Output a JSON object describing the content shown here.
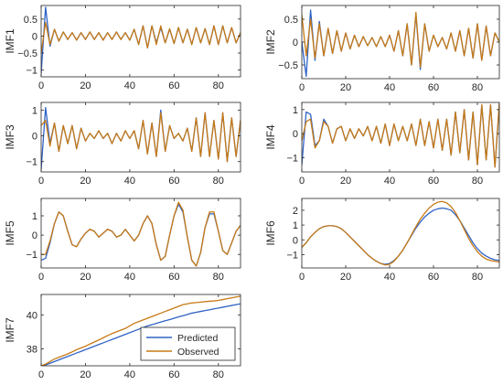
{
  "colors": {
    "predicted": "#2f63c4",
    "observed": "#c77a16",
    "axis": "#262626",
    "background": "#ffffff"
  },
  "legend": {
    "entries": [
      {
        "label": "Predicted",
        "color": "#2f63c4"
      },
      {
        "label": "Observed",
        "color": "#c77a16"
      }
    ],
    "placement": "bottom-right",
    "panel": "IMF7"
  },
  "chart_data": [
    {
      "type": "line",
      "ylabel": "IMF1",
      "xlim": [
        0,
        90
      ],
      "ylim": [
        -1.2,
        0.9
      ],
      "xticks": [
        0,
        20,
        40,
        60,
        80
      ],
      "yticks": [
        -1,
        -0.5,
        0,
        0.5
      ],
      "x": [
        0,
        2,
        4,
        6,
        8,
        10,
        12,
        14,
        16,
        18,
        20,
        22,
        24,
        26,
        28,
        30,
        32,
        34,
        36,
        38,
        40,
        42,
        44,
        46,
        48,
        50,
        52,
        54,
        56,
        58,
        60,
        62,
        64,
        66,
        68,
        70,
        72,
        74,
        76,
        78,
        80,
        82,
        84,
        86,
        88,
        90
      ],
      "series": [
        {
          "name": "Predicted",
          "values": [
            -1.1,
            0.85,
            -0.3,
            0.2,
            -0.15,
            0.12,
            -0.1,
            0.1,
            -0.12,
            0.1,
            -0.1,
            0.12,
            -0.1,
            0.1,
            -0.12,
            0.1,
            -0.1,
            0.12,
            -0.1,
            0.1,
            -0.12,
            0.2,
            -0.25,
            0.3,
            -0.35,
            0.3,
            -0.2,
            0.25,
            -0.2,
            0.2,
            -0.22,
            0.25,
            -0.2,
            0.2,
            -0.25,
            0.25,
            -0.2,
            0.22,
            -0.25,
            0.3,
            -0.25,
            0.3,
            -0.2,
            0.25,
            -0.2,
            0.1
          ]
        },
        {
          "name": "Observed",
          "values": [
            -0.5,
            0.4,
            -0.25,
            0.2,
            -0.15,
            0.12,
            -0.1,
            0.1,
            -0.12,
            0.1,
            -0.1,
            0.12,
            -0.1,
            0.1,
            -0.12,
            0.1,
            -0.1,
            0.12,
            -0.1,
            0.1,
            -0.12,
            0.2,
            -0.25,
            0.3,
            -0.35,
            0.3,
            -0.25,
            0.3,
            -0.2,
            0.22,
            -0.22,
            0.25,
            -0.2,
            0.2,
            -0.25,
            0.25,
            -0.2,
            0.22,
            -0.25,
            0.3,
            -0.25,
            0.3,
            -0.2,
            0.25,
            -0.2,
            0.1
          ]
        }
      ]
    },
    {
      "type": "line",
      "ylabel": "IMF2",
      "xlim": [
        0,
        90
      ],
      "ylim": [
        -0.8,
        0.8
      ],
      "xticks": [
        0,
        20,
        40,
        60,
        80
      ],
      "yticks": [
        -0.5,
        0,
        0.5
      ],
      "x": [
        0,
        2,
        4,
        6,
        8,
        10,
        12,
        14,
        16,
        18,
        20,
        22,
        24,
        26,
        28,
        30,
        32,
        34,
        36,
        38,
        40,
        42,
        44,
        46,
        48,
        50,
        52,
        54,
        56,
        58,
        60,
        62,
        64,
        66,
        68,
        70,
        72,
        74,
        76,
        78,
        80,
        82,
        84,
        86,
        88,
        90
      ],
      "series": [
        {
          "name": "Predicted",
          "values": [
            0.0,
            -0.75,
            0.7,
            -0.4,
            0.45,
            -0.3,
            0.3,
            -0.25,
            0.25,
            -0.2,
            0.2,
            -0.15,
            0.15,
            -0.1,
            0.12,
            -0.08,
            0.1,
            -0.1,
            0.12,
            -0.1,
            0.15,
            -0.2,
            0.25,
            -0.3,
            0.4,
            -0.5,
            0.6,
            -0.6,
            0.4,
            -0.2,
            0.15,
            -0.1,
            0.1,
            -0.15,
            0.2,
            -0.2,
            0.25,
            -0.3,
            0.3,
            -0.35,
            0.4,
            -0.4,
            0.35,
            -0.3,
            0.2,
            0.0
          ]
        },
        {
          "name": "Observed",
          "values": [
            0.6,
            -0.3,
            0.5,
            -0.35,
            0.4,
            -0.3,
            0.3,
            -0.25,
            0.25,
            -0.2,
            0.2,
            -0.15,
            0.15,
            -0.1,
            0.12,
            -0.08,
            0.1,
            -0.1,
            0.12,
            -0.1,
            0.15,
            -0.2,
            0.25,
            -0.3,
            0.4,
            -0.5,
            0.65,
            -0.55,
            0.4,
            -0.2,
            0.15,
            -0.1,
            0.1,
            -0.15,
            0.2,
            -0.2,
            0.25,
            -0.3,
            0.3,
            -0.35,
            0.4,
            -0.4,
            0.35,
            -0.3,
            0.2,
            0.0
          ]
        }
      ]
    },
    {
      "type": "line",
      "ylabel": "IMF3",
      "xlim": [
        0,
        90
      ],
      "ylim": [
        -1.4,
        1.3
      ],
      "xticks": [
        0,
        20,
        40,
        60,
        80
      ],
      "yticks": [
        -1,
        0,
        1
      ],
      "x": [
        0,
        2,
        4,
        6,
        8,
        10,
        12,
        14,
        16,
        18,
        20,
        22,
        24,
        26,
        28,
        30,
        32,
        34,
        36,
        38,
        40,
        42,
        44,
        46,
        48,
        50,
        52,
        54,
        56,
        58,
        60,
        62,
        64,
        66,
        68,
        70,
        72,
        74,
        76,
        78,
        80,
        82,
        84,
        86,
        88,
        90
      ],
      "series": [
        {
          "name": "Predicted",
          "values": [
            -1.3,
            1.1,
            -0.3,
            0.5,
            -0.6,
            0.4,
            -0.3,
            0.4,
            -0.5,
            0.3,
            -0.2,
            0.1,
            -0.1,
            0.2,
            -0.1,
            0.1,
            -0.3,
            0.1,
            -0.2,
            0.2,
            -0.1,
            0.2,
            -0.5,
            0.6,
            -0.7,
            0.5,
            -0.8,
            1.0,
            -0.6,
            0.4,
            -0.1,
            0.1,
            -0.2,
            0.3,
            -0.6,
            0.7,
            -0.8,
            0.9,
            -0.8,
            0.6,
            -0.9,
            0.9,
            -1.0,
            0.7,
            -0.8,
            0.6
          ]
        },
        {
          "name": "Observed",
          "values": [
            0.4,
            0.6,
            -0.4,
            0.5,
            -0.6,
            0.4,
            -0.3,
            0.4,
            -0.5,
            0.3,
            -0.2,
            0.1,
            -0.1,
            0.2,
            -0.1,
            0.1,
            -0.3,
            0.1,
            -0.2,
            0.2,
            -0.1,
            0.2,
            -0.5,
            0.6,
            -0.7,
            0.5,
            -0.8,
            0.9,
            -0.6,
            0.4,
            -0.1,
            0.1,
            -0.2,
            0.3,
            -0.6,
            0.7,
            -0.8,
            0.9,
            -0.8,
            0.6,
            -0.9,
            0.9,
            -1.0,
            0.7,
            -0.8,
            0.6
          ]
        }
      ]
    },
    {
      "type": "line",
      "ylabel": "IMF4",
      "xlim": [
        0,
        90
      ],
      "ylim": [
        -1.6,
        1.3
      ],
      "xticks": [
        0,
        20,
        40,
        60,
        80
      ],
      "yticks": [
        -1,
        0,
        1
      ],
      "x": [
        0,
        2,
        4,
        6,
        8,
        10,
        12,
        14,
        16,
        18,
        20,
        22,
        24,
        26,
        28,
        30,
        32,
        34,
        36,
        38,
        40,
        42,
        44,
        46,
        48,
        50,
        52,
        54,
        56,
        58,
        60,
        62,
        64,
        66,
        68,
        70,
        72,
        74,
        76,
        78,
        80,
        82,
        84,
        86,
        88,
        90
      ],
      "series": [
        {
          "name": "Predicted",
          "values": [
            -1.3,
            0.9,
            0.8,
            -0.5,
            -0.3,
            0.6,
            0.3,
            -0.4,
            0.2,
            0.3,
            -0.3,
            0.2,
            -0.2,
            0.2,
            -0.1,
            0.3,
            -0.3,
            0.3,
            -0.4,
            0.4,
            -0.5,
            0.4,
            -0.3,
            0.3,
            -0.3,
            0.4,
            -0.5,
            0.6,
            -0.5,
            0.5,
            -0.6,
            0.6,
            -0.7,
            0.6,
            -0.9,
            0.9,
            -0.8,
            1.0,
            -1.1,
            0.9,
            -1.3,
            1.2,
            -1.1,
            1.2,
            -1.4,
            1.2
          ]
        },
        {
          "name": "Observed",
          "values": [
            -0.3,
            0.5,
            0.6,
            -0.6,
            -0.3,
            0.5,
            0.3,
            -0.4,
            0.2,
            0.3,
            -0.3,
            0.2,
            -0.2,
            0.2,
            -0.1,
            0.3,
            -0.3,
            0.3,
            -0.4,
            0.4,
            -0.5,
            0.4,
            -0.3,
            0.3,
            -0.3,
            0.4,
            -0.5,
            0.6,
            -0.5,
            0.5,
            -0.6,
            0.6,
            -0.7,
            0.6,
            -0.9,
            0.9,
            -0.8,
            1.0,
            -1.1,
            0.9,
            -1.3,
            1.2,
            -1.1,
            1.2,
            -1.4,
            1.3
          ]
        }
      ]
    },
    {
      "type": "line",
      "ylabel": "IMF5",
      "xlim": [
        0,
        90
      ],
      "ylim": [
        -1.7,
        1.9
      ],
      "xticks": [
        0,
        20,
        40,
        60,
        80
      ],
      "yticks": [
        -1,
        0,
        1
      ],
      "x": [
        0,
        2,
        4,
        6,
        8,
        10,
        12,
        14,
        16,
        18,
        20,
        22,
        24,
        26,
        28,
        30,
        32,
        34,
        36,
        38,
        40,
        42,
        44,
        46,
        48,
        50,
        52,
        54,
        56,
        58,
        60,
        62,
        64,
        66,
        68,
        70,
        72,
        74,
        76,
        78,
        80,
        82,
        84,
        86,
        88,
        90
      ],
      "series": [
        {
          "name": "Predicted",
          "values": [
            -1.3,
            -1.2,
            -0.4,
            0.6,
            1.2,
            1.0,
            0.2,
            -0.5,
            -0.6,
            -0.2,
            0.1,
            0.3,
            0.2,
            -0.1,
            0.1,
            0.3,
            0.2,
            -0.1,
            0.0,
            0.3,
            0.0,
            -0.3,
            0.0,
            0.6,
            1.0,
            0.6,
            -0.5,
            -1.3,
            -1.1,
            0.0,
            1.0,
            1.6,
            1.2,
            -0.1,
            -1.3,
            -1.6,
            -0.9,
            0.4,
            1.1,
            1.1,
            0.2,
            -0.8,
            -1.0,
            -0.4,
            0.2,
            0.5
          ]
        },
        {
          "name": "Observed",
          "values": [
            -1.0,
            -1.0,
            -0.3,
            0.6,
            1.2,
            1.0,
            0.2,
            -0.5,
            -0.6,
            -0.2,
            0.1,
            0.3,
            0.2,
            -0.1,
            0.1,
            0.3,
            0.2,
            -0.1,
            0.0,
            0.3,
            0.0,
            -0.3,
            0.0,
            0.6,
            1.0,
            0.6,
            -0.5,
            -1.3,
            -1.1,
            0.0,
            1.0,
            1.7,
            1.3,
            -0.1,
            -1.3,
            -1.6,
            -0.9,
            0.4,
            1.2,
            1.2,
            0.2,
            -0.8,
            -1.0,
            -0.4,
            0.2,
            0.5
          ]
        }
      ]
    },
    {
      "type": "line",
      "ylabel": "IMF6",
      "xlim": [
        0,
        90
      ],
      "ylim": [
        -1.9,
        2.8
      ],
      "xticks": [
        0,
        20,
        40,
        60,
        80
      ],
      "yticks": [
        -1,
        0,
        1,
        2
      ],
      "x": [
        0,
        2,
        4,
        6,
        8,
        10,
        12,
        14,
        16,
        18,
        20,
        22,
        24,
        26,
        28,
        30,
        32,
        34,
        36,
        38,
        40,
        42,
        44,
        46,
        48,
        50,
        52,
        54,
        56,
        58,
        60,
        62,
        64,
        66,
        68,
        70,
        72,
        74,
        76,
        78,
        80,
        82,
        84,
        86,
        88,
        90
      ],
      "series": [
        {
          "name": "Predicted",
          "values": [
            -0.5,
            -0.2,
            0.2,
            0.5,
            0.75,
            0.9,
            0.95,
            0.95,
            0.9,
            0.75,
            0.5,
            0.2,
            -0.1,
            -0.4,
            -0.7,
            -1.0,
            -1.25,
            -1.45,
            -1.6,
            -1.65,
            -1.6,
            -1.4,
            -1.1,
            -0.7,
            -0.2,
            0.3,
            0.8,
            1.2,
            1.55,
            1.8,
            2.0,
            2.1,
            2.15,
            2.1,
            2.0,
            1.7,
            1.3,
            0.8,
            0.3,
            -0.2,
            -0.6,
            -0.9,
            -1.1,
            -1.25,
            -1.35,
            -1.4
          ]
        },
        {
          "name": "Observed",
          "values": [
            -0.5,
            -0.2,
            0.2,
            0.5,
            0.75,
            0.9,
            0.95,
            0.95,
            0.9,
            0.75,
            0.5,
            0.2,
            -0.1,
            -0.4,
            -0.7,
            -1.0,
            -1.25,
            -1.45,
            -1.6,
            -1.7,
            -1.65,
            -1.45,
            -1.1,
            -0.7,
            -0.2,
            0.35,
            0.9,
            1.4,
            1.8,
            2.15,
            2.4,
            2.55,
            2.6,
            2.5,
            2.25,
            1.85,
            1.3,
            0.7,
            0.1,
            -0.4,
            -0.8,
            -1.1,
            -1.3,
            -1.4,
            -1.45,
            -1.5
          ]
        }
      ]
    },
    {
      "type": "line",
      "ylabel": "IMF7",
      "xlim": [
        0,
        90
      ],
      "ylim": [
        37,
        41.2
      ],
      "xticks": [
        0,
        20,
        40,
        60,
        80
      ],
      "yticks": [
        38,
        40
      ],
      "x": [
        0,
        2,
        4,
        6,
        8,
        10,
        12,
        14,
        16,
        18,
        20,
        22,
        24,
        26,
        28,
        30,
        32,
        34,
        36,
        38,
        40,
        42,
        44,
        46,
        48,
        50,
        52,
        54,
        56,
        58,
        60,
        62,
        64,
        66,
        68,
        70,
        72,
        74,
        76,
        78,
        80,
        82,
        84,
        86,
        88,
        90
      ],
      "series": [
        {
          "name": "Predicted",
          "values": [
            37.0,
            37.05,
            37.15,
            37.25,
            37.35,
            37.45,
            37.55,
            37.65,
            37.75,
            37.85,
            37.95,
            38.05,
            38.15,
            38.25,
            38.35,
            38.45,
            38.55,
            38.65,
            38.75,
            38.85,
            38.95,
            39.05,
            39.15,
            39.25,
            39.35,
            39.42,
            39.5,
            39.58,
            39.65,
            39.72,
            39.8,
            39.88,
            39.95,
            40.02,
            40.1,
            40.15,
            40.2,
            40.25,
            40.3,
            40.35,
            40.4,
            40.45,
            40.5,
            40.55,
            40.6,
            40.65
          ]
        },
        {
          "name": "Observed",
          "values": [
            37.0,
            37.1,
            37.25,
            37.4,
            37.5,
            37.6,
            37.7,
            37.82,
            37.95,
            38.05,
            38.15,
            38.28,
            38.4,
            38.52,
            38.65,
            38.78,
            38.9,
            39.0,
            39.1,
            39.2,
            39.35,
            39.5,
            39.6,
            39.7,
            39.8,
            39.9,
            40.0,
            40.1,
            40.2,
            40.3,
            40.4,
            40.5,
            40.6,
            40.65,
            40.7,
            40.72,
            40.75,
            40.78,
            40.8,
            40.82,
            40.85,
            40.9,
            40.95,
            41.0,
            41.05,
            41.1
          ]
        }
      ]
    }
  ]
}
